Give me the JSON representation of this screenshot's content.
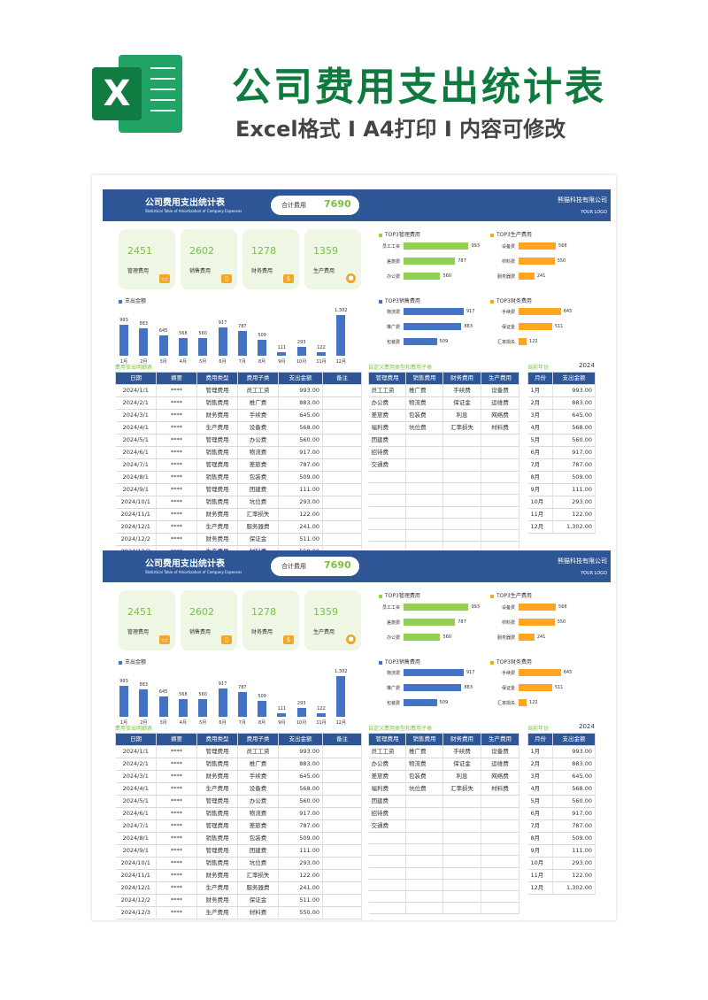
{
  "promo": {
    "logo_letter": "X",
    "title": "公司费用支出统计表",
    "subtitle": "Excel格式 I A4打印 I 内容可修改"
  },
  "report": {
    "title": "公司费用支出统计表",
    "subtitle_en": "Statistical Table of Amortization of Company Expenses",
    "total_label": "合计费用",
    "total_value": "7690",
    "company": "熊猫科技有限公司",
    "logo_text": "YOUR LOGO"
  },
  "cards": [
    {
      "value": "2451",
      "label": "管理费用",
      "icon": "wallet-icon",
      "glyph": "▭"
    },
    {
      "value": "2602",
      "label": "销售费用",
      "icon": "phone-icon",
      "glyph": "▯"
    },
    {
      "value": "1278",
      "label": "财务费用",
      "icon": "money-bag-icon",
      "glyph": "$"
    },
    {
      "value": "1359",
      "label": "生产费用",
      "icon": "person-icon",
      "glyph": "●"
    }
  ],
  "colors": {
    "header": "#2e5596",
    "bar_blue": "#4472c4",
    "bar_green": "#92d050",
    "bar_orange": "#ffa51f",
    "accent_green": "#7ac143"
  },
  "chart_data": [
    {
      "type": "bar",
      "title": "支出金额",
      "categories": [
        "1月",
        "2月",
        "3月",
        "4月",
        "5月",
        "6月",
        "7月",
        "8月",
        "9月",
        "10月",
        "11月",
        "12月"
      ],
      "values": [
        993,
        883,
        645,
        568,
        560,
        917,
        787,
        509,
        111,
        293,
        122,
        1302
      ],
      "value_labels": [
        "993",
        "883",
        "645",
        "568",
        "560",
        "917",
        "787",
        "509",
        "111",
        "293",
        "122",
        "1,302"
      ]
    },
    {
      "type": "bar",
      "title": "TOP3管理费用",
      "orientation": "horizontal",
      "categories": [
        "员工工资",
        "差旅费",
        "办公费"
      ],
      "values": [
        993,
        787,
        560
      ],
      "color": "#92d050"
    },
    {
      "type": "bar",
      "title": "TOP3生产费用",
      "orientation": "horizontal",
      "categories": [
        "设备费",
        "材料费",
        "服务器费"
      ],
      "values": [
        568,
        550,
        241
      ],
      "color": "#ffa51f"
    },
    {
      "type": "bar",
      "title": "TOP3销售费用",
      "orientation": "horizontal",
      "categories": [
        "物流费",
        "推广费",
        "包装费"
      ],
      "values": [
        917,
        883,
        509
      ],
      "color": "#4472c4"
    },
    {
      "type": "bar",
      "title": "TOP3财务费用",
      "orientation": "horizontal",
      "categories": [
        "手续费",
        "保证金",
        "汇率损失"
      ],
      "values": [
        645,
        511,
        122
      ],
      "color": "#ffa51f"
    }
  ],
  "detail": {
    "title": "费用支出明细表",
    "headers": [
      "日期",
      "摘要",
      "费用类型",
      "费用子类",
      "支出金额",
      "备注"
    ],
    "rows": [
      [
        "2024/1/1",
        "****",
        "管理费用",
        "员工工资",
        "993.00",
        ""
      ],
      [
        "2024/2/1",
        "****",
        "销售费用",
        "推广费",
        "883.00",
        ""
      ],
      [
        "2024/3/1",
        "****",
        "财务费用",
        "手续费",
        "645.00",
        ""
      ],
      [
        "2024/4/1",
        "****",
        "生产费用",
        "设备费",
        "568.00",
        ""
      ],
      [
        "2024/5/1",
        "****",
        "管理费用",
        "办公费",
        "560.00",
        ""
      ],
      [
        "2024/6/1",
        "****",
        "销售费用",
        "物流费",
        "917.00",
        ""
      ],
      [
        "2024/7/1",
        "****",
        "管理费用",
        "差旅费",
        "787.00",
        ""
      ],
      [
        "2024/8/1",
        "****",
        "销售费用",
        "包装费",
        "509.00",
        ""
      ],
      [
        "2024/9/1",
        "****",
        "管理费用",
        "团建费",
        "111.00",
        ""
      ],
      [
        "2024/10/1",
        "****",
        "销售费用",
        "坑位费",
        "293.00",
        ""
      ],
      [
        "2024/11/1",
        "****",
        "财务费用",
        "汇率损失",
        "122.00",
        ""
      ],
      [
        "2024/12/1",
        "****",
        "生产费用",
        "服务器费",
        "241.00",
        ""
      ],
      [
        "2024/12/2",
        "****",
        "财务费用",
        "保证金",
        "511.00",
        ""
      ],
      [
        "2024/12/3",
        "****",
        "生产费用",
        "材料费",
        "550.00",
        ""
      ]
    ]
  },
  "custom": {
    "title": "自定义费用类型和费用子类",
    "headers": [
      "管理费用",
      "销售费用",
      "财务费用",
      "生产费用"
    ],
    "rows": [
      [
        "员工工资",
        "推广费",
        "手续费",
        "设备费"
      ],
      [
        "办公费",
        "物流费",
        "保证金",
        "运维费"
      ],
      [
        "差旅费",
        "包装费",
        "利息",
        "网络费"
      ],
      [
        "福利费",
        "坑位费",
        "汇率损失",
        "材料费"
      ],
      [
        "团建费",
        "",
        "",
        ""
      ],
      [
        "招待费",
        "",
        "",
        ""
      ],
      [
        "交通费",
        "",
        "",
        ""
      ],
      [
        "",
        "",
        "",
        ""
      ],
      [
        "",
        "",
        "",
        ""
      ],
      [
        "",
        "",
        "",
        ""
      ],
      [
        "",
        "",
        "",
        ""
      ],
      [
        "",
        "",
        "",
        ""
      ],
      [
        "",
        "",
        "",
        ""
      ],
      [
        "",
        "",
        "",
        ""
      ]
    ]
  },
  "monthly": {
    "title": "当前年份",
    "year": "2024",
    "headers": [
      "月份",
      "支出金额"
    ],
    "rows": [
      [
        "1月",
        "993.00"
      ],
      [
        "2月",
        "883.00"
      ],
      [
        "3月",
        "645.00"
      ],
      [
        "4月",
        "568.00"
      ],
      [
        "5月",
        "560.00"
      ],
      [
        "6月",
        "917.00"
      ],
      [
        "7月",
        "787.00"
      ],
      [
        "8月",
        "509.00"
      ],
      [
        "9月",
        "111.00"
      ],
      [
        "10月",
        "293.00"
      ],
      [
        "11月",
        "122.00"
      ],
      [
        "12月",
        "1,302.00"
      ]
    ]
  }
}
